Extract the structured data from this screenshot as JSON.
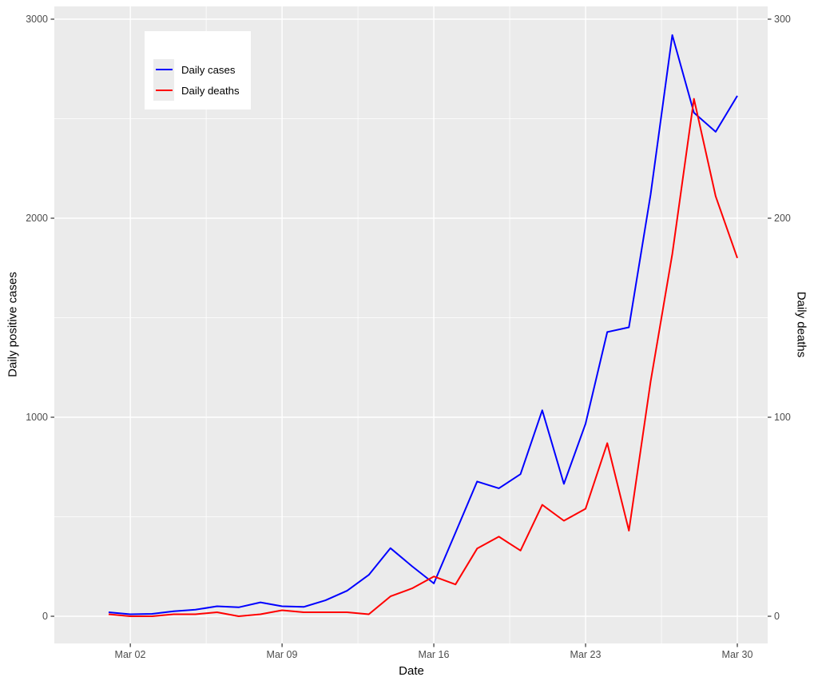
{
  "chart_data": {
    "type": "line",
    "title": "",
    "xlabel": "Date",
    "ylabel_left": "Daily positive cases",
    "ylabel_right": "Daily deaths",
    "panel_bg": "#EBEBEB",
    "grid_color": "#FFFFFF",
    "grid": true,
    "legend_position": "inset top-left",
    "x_dates": [
      "Mar 01",
      "Mar 02",
      "Mar 03",
      "Mar 04",
      "Mar 05",
      "Mar 06",
      "Mar 07",
      "Mar 08",
      "Mar 09",
      "Mar 10",
      "Mar 11",
      "Mar 12",
      "Mar 13",
      "Mar 14",
      "Mar 15",
      "Mar 16",
      "Mar 17",
      "Mar 18",
      "Mar 19",
      "Mar 20",
      "Mar 21",
      "Mar 22",
      "Mar 23",
      "Mar 24",
      "Mar 25",
      "Mar 26",
      "Mar 27",
      "Mar 28",
      "Mar 29",
      "Mar 30"
    ],
    "series": [
      {
        "name": "Daily cases",
        "color": "#0000FF",
        "axis": "left",
        "values": [
          20,
          10,
          12,
          25,
          33,
          50,
          45,
          70,
          50,
          47,
          80,
          128,
          208,
          342,
          251,
          165,
          420,
          677,
          643,
          714,
          1035,
          665,
          967,
          1428,
          1452,
          2120,
          2920,
          2530,
          2434,
          2615
        ]
      },
      {
        "name": "Daily deaths",
        "color": "#FF0000",
        "axis": "right",
        "values": [
          1,
          0,
          0,
          1,
          1,
          2,
          0,
          1,
          3,
          2,
          2,
          2,
          1,
          10,
          14,
          20,
          16,
          34,
          40,
          33,
          56,
          48,
          54,
          87,
          43,
          118,
          182,
          260,
          211,
          180
        ]
      }
    ],
    "axes": {
      "left": {
        "ticks": [
          "0",
          "1000",
          "2000",
          "3000"
        ],
        "lim": [
          0,
          3000
        ]
      },
      "right": {
        "ticks": [
          "0",
          "100",
          "200",
          "300"
        ],
        "lim": [
          0,
          300
        ]
      },
      "x": {
        "ticks": [
          "Mar 02",
          "Mar 09",
          "Mar 16",
          "Mar 23",
          "Mar 30"
        ]
      }
    }
  },
  "legend": {
    "items": [
      {
        "label": "Daily cases",
        "color": "#0000FF"
      },
      {
        "label": "Daily deaths",
        "color": "#FF0000"
      }
    ]
  }
}
